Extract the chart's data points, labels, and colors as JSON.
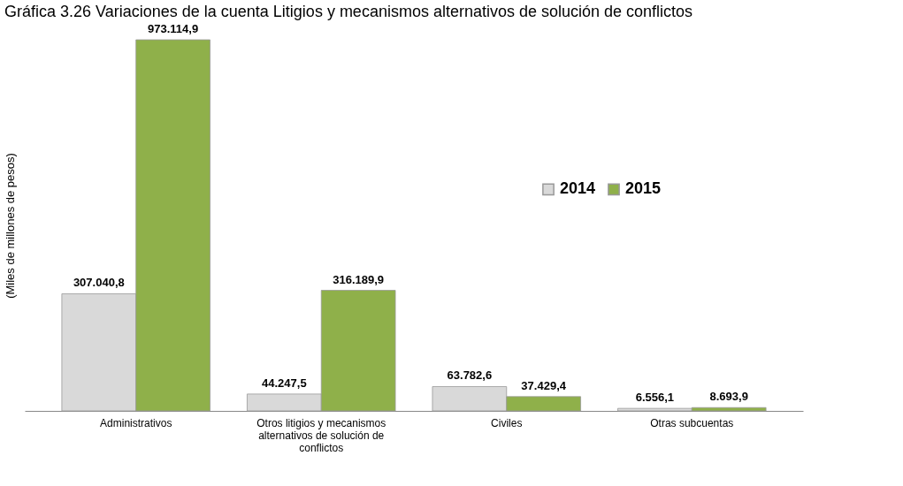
{
  "chart_data": {
    "type": "bar",
    "title": "Gráfica 3.26 Variaciones de la cuenta Litigios y mecanismos alternativos de solución de conflictos",
    "ylabel": "(Miles de millones de pesos)",
    "categories": [
      "Administrativos",
      "Otros litigios y mecanismos alternativos de solución de conflictos",
      "Civiles",
      "Otras subcuentas"
    ],
    "series": [
      {
        "name": "2014",
        "color": "#d9d9d9",
        "values": [
          307040.8,
          44247.5,
          63782.6,
          6556.1
        ],
        "value_labels": [
          "307.040,8",
          "44.247,5",
          "63.782,6",
          "6.556,1"
        ]
      },
      {
        "name": "2015",
        "color": "#8fb04a",
        "values": [
          973114.9,
          316189.9,
          37429.4,
          8693.9
        ],
        "value_labels": [
          "973.114,9",
          "316.189,9",
          "37.429,4",
          "8.693,9"
        ]
      }
    ],
    "legend": "top right",
    "grid": false
  }
}
